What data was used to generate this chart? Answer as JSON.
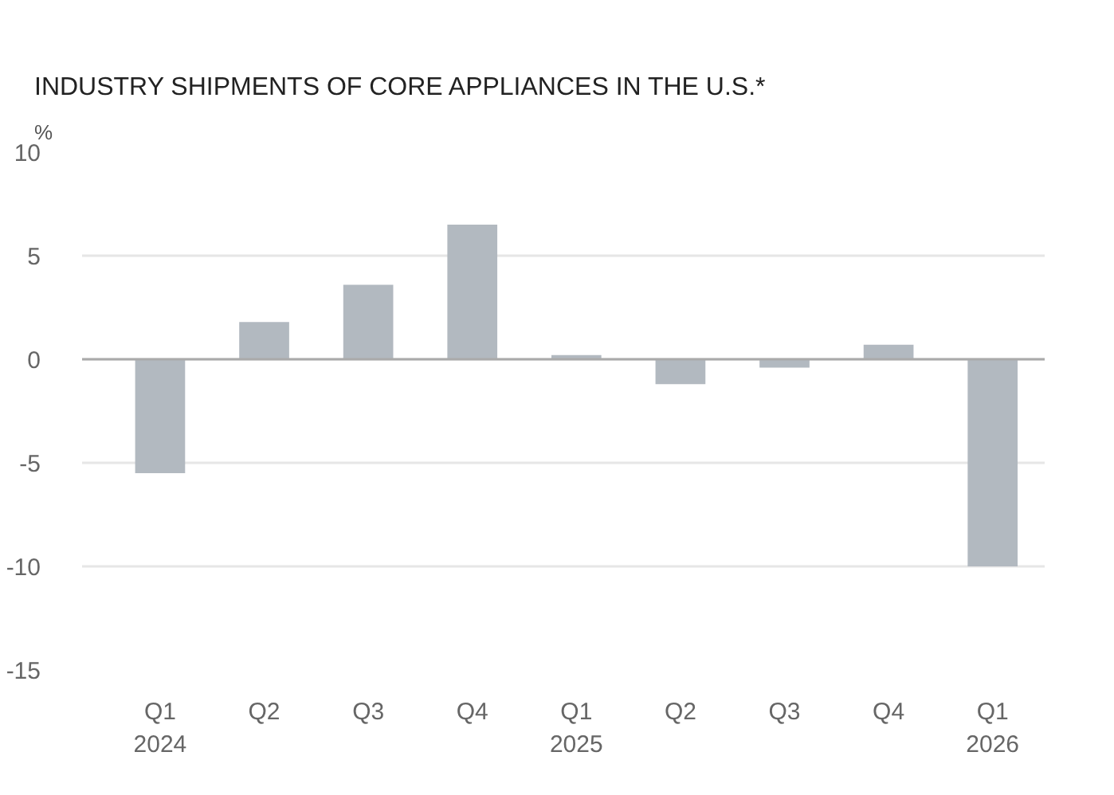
{
  "chart_data": {
    "type": "bar",
    "title": "INDUSTRY SHIPMENTS OF CORE APPLIANCES IN THE U.S.*",
    "ylabel": "%",
    "categories": [
      "Q1\n2024",
      "Q2",
      "Q3",
      "Q4",
      "Q1\n2025",
      "Q2",
      "Q3",
      "Q4",
      "Q1\n2026"
    ],
    "values": [
      -5.5,
      1.8,
      3.6,
      6.5,
      0.2,
      -1.2,
      -0.4,
      0.7,
      -10.0
    ],
    "color": "#b2b9c0",
    "ylim": [
      -15,
      10
    ],
    "yticks": [
      -15,
      -10,
      -5,
      0,
      5,
      10
    ],
    "grid": "y"
  }
}
